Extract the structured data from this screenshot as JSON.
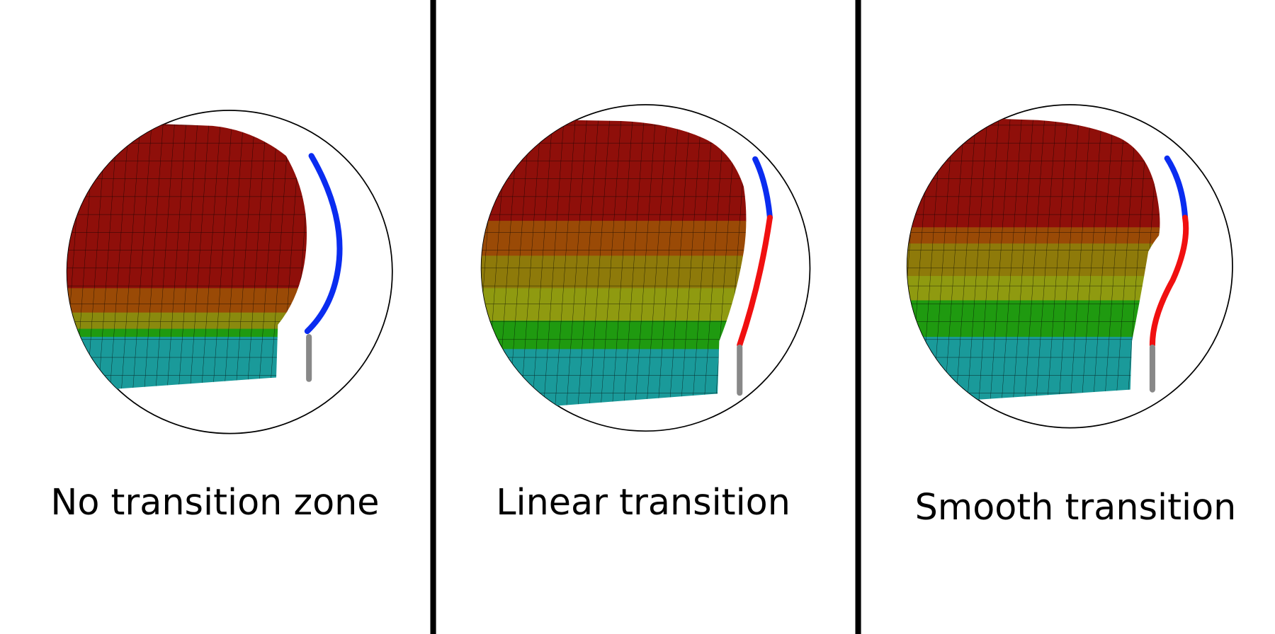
{
  "panels": [
    {
      "caption": "No transition zone"
    },
    {
      "caption": "Linear transition"
    },
    {
      "caption": "Smooth transition"
    }
  ]
}
